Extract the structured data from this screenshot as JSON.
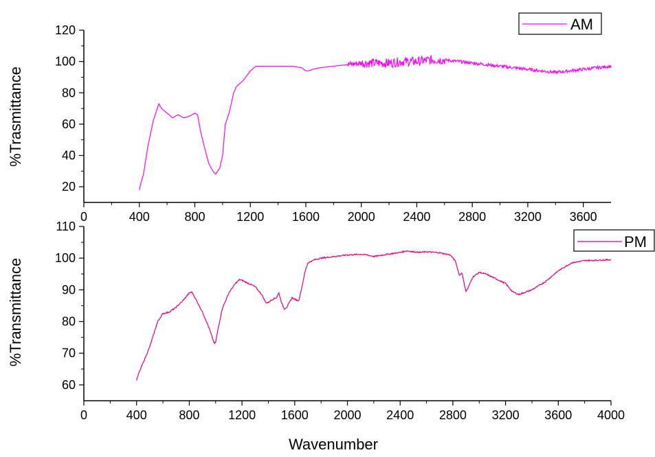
{
  "chart_data": [
    {
      "type": "line",
      "series": [
        {
          "name": "AM",
          "color": "#ff00ff",
          "x": [
            400,
            410,
            430,
            460,
            500,
            540,
            560,
            600,
            640,
            680,
            700,
            720,
            760,
            800,
            820,
            840,
            870,
            900,
            930,
            950,
            980,
            1000,
            1020,
            1050,
            1080,
            1100,
            1150,
            1200,
            1240,
            1260,
            1300,
            1400,
            1500,
            1570,
            1600,
            1620,
            1650,
            1700,
            1800,
            1900,
            2000,
            2100,
            2200,
            2300,
            2400,
            2500,
            2600,
            2700,
            2800,
            2900,
            3000,
            3100,
            3200,
            3300,
            3400,
            3500,
            3600,
            3700,
            3800
          ],
          "y": [
            18,
            22,
            28,
            45,
            62,
            73,
            70,
            67,
            64,
            66,
            65,
            64,
            65,
            67,
            66,
            56,
            45,
            35,
            30,
            28,
            32,
            40,
            60,
            68,
            80,
            84,
            88,
            94,
            97,
            97,
            97,
            97,
            97,
            96,
            94,
            94,
            95,
            96,
            97,
            98,
            99,
            99,
            99,
            100,
            100,
            101,
            101,
            100,
            99,
            98,
            97,
            96,
            95,
            94,
            93,
            94,
            95,
            96,
            97
          ],
          "noise": [
            [
              1900,
              2000,
              2
            ],
            [
              2000,
              2600,
              3
            ],
            [
              2600,
              3200,
              1
            ],
            [
              3200,
              3800,
              1
            ]
          ]
        }
      ],
      "legend": {
        "position": "top-right"
      },
      "xlim": [
        0,
        3800
      ],
      "ylim": [
        10,
        120
      ],
      "x_ticks": [
        0,
        400,
        800,
        1200,
        1600,
        2000,
        2400,
        2800,
        3200,
        3600
      ],
      "y_ticks": [
        20,
        40,
        60,
        80,
        100,
        120
      ],
      "ylabel": "%Trasmittance",
      "xlabel": "",
      "grid": false
    },
    {
      "type": "line",
      "series": [
        {
          "name": "PM",
          "color": "#e6007e",
          "x": [
            400,
            420,
            450,
            500,
            560,
            600,
            650,
            700,
            750,
            800,
            820,
            850,
            900,
            950,
            990,
            1000,
            1020,
            1050,
            1100,
            1150,
            1180,
            1200,
            1250,
            1300,
            1350,
            1380,
            1400,
            1430,
            1460,
            1480,
            1500,
            1520,
            1540,
            1560,
            1580,
            1600,
            1630,
            1650,
            1680,
            1700,
            1750,
            1800,
            1900,
            2000,
            2100,
            2150,
            2200,
            2300,
            2400,
            2450,
            2500,
            2550,
            2600,
            2700,
            2780,
            2820,
            2850,
            2870,
            2880,
            2900,
            2920,
            2950,
            3000,
            3050,
            3100,
            3150,
            3200,
            3250,
            3300,
            3400,
            3500,
            3600,
            3700,
            3800,
            4000
          ],
          "y": [
            61.5,
            64,
            67,
            72,
            80,
            82.5,
            83,
            84.5,
            86.5,
            89,
            89.3,
            87,
            83,
            78,
            73,
            73.5,
            78,
            84,
            89,
            92,
            93.2,
            93,
            92,
            91,
            88.5,
            86,
            86,
            87,
            87.5,
            89,
            86,
            84,
            84.5,
            86,
            87.5,
            87,
            86.5,
            90,
            96,
            98.5,
            99.5,
            100,
            100.5,
            101,
            101.2,
            101,
            100.5,
            101.2,
            101.8,
            102.3,
            102,
            101.8,
            102,
            101.7,
            101,
            99,
            94.5,
            95.5,
            93,
            89.5,
            91,
            94,
            95.5,
            95,
            94,
            93,
            92,
            89.5,
            88.5,
            90,
            92.5,
            96,
            98.5,
            99.2,
            99.5
          ],
          "noise": [
            [
              400,
              4000,
              0.2
            ]
          ]
        }
      ],
      "legend": {
        "position": "top-right"
      },
      "xlim": [
        0,
        4000
      ],
      "ylim": [
        55,
        110
      ],
      "x_ticks": [
        0,
        400,
        800,
        1200,
        1600,
        2000,
        2400,
        2800,
        3200,
        3600,
        4000
      ],
      "y_ticks": [
        60,
        70,
        80,
        90,
        100,
        110
      ],
      "ylabel": "%Transmittance",
      "xlabel": "Wavenumber",
      "grid": false
    }
  ]
}
